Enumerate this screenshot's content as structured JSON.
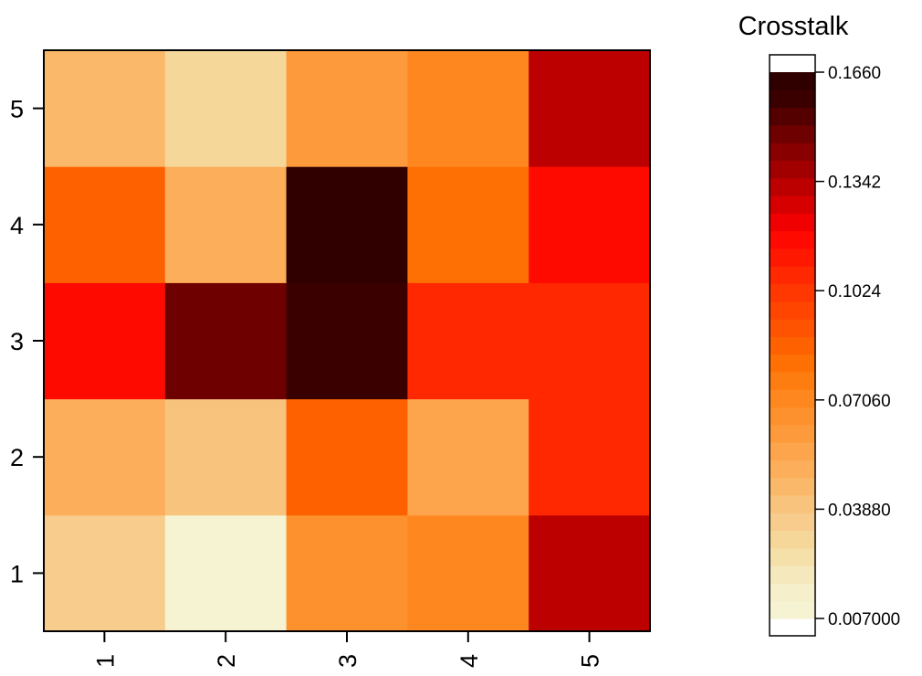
{
  "chart_data": {
    "type": "heatmap",
    "title": "",
    "xlabel": "",
    "ylabel": "",
    "x_categories": [
      "1",
      "2",
      "3",
      "4",
      "5"
    ],
    "y_categories": [
      "1",
      "2",
      "3",
      "4",
      "5"
    ],
    "values": [
      [
        0.035,
        0.01,
        0.066,
        0.07,
        0.132
      ],
      [
        0.049,
        0.041,
        0.085,
        0.057,
        0.107
      ],
      [
        0.117,
        0.15,
        0.158,
        0.106,
        0.106
      ],
      [
        0.085,
        0.052,
        0.164,
        0.082,
        0.119
      ],
      [
        0.047,
        0.03,
        0.059,
        0.071,
        0.132
      ]
    ],
    "colorbar": {
      "title": "Crosstalk",
      "min": 0.007,
      "max": 0.166,
      "ticks": [
        0.166,
        0.1342,
        0.1024,
        0.0706,
        0.0388,
        0.007
      ],
      "tick_labels": [
        "0.1660",
        "0.1342",
        "0.1024",
        "0.07060",
        "0.03880",
        "0.007000"
      ],
      "colors": [
        "#f6f3d3",
        "#f5efcc",
        "#f5e8bc",
        "#f5e0aa",
        "#f6d79a",
        "#f7cc8c",
        "#f8c37d",
        "#fab96a",
        "#fcae5a",
        "#fda54c",
        "#fd9b3c",
        "#fd912e",
        "#fe8720",
        "#fd7d10",
        "#fe7003",
        "#fe6100",
        "#fe5300",
        "#ff4500",
        "#ff3700",
        "#ff2800",
        "#ff1800",
        "#ff0a00",
        "#f00000",
        "#d60000",
        "#bc0000",
        "#a20000",
        "#880000",
        "#6e0000",
        "#540000",
        "#3a0000",
        "#300000"
      ]
    }
  }
}
